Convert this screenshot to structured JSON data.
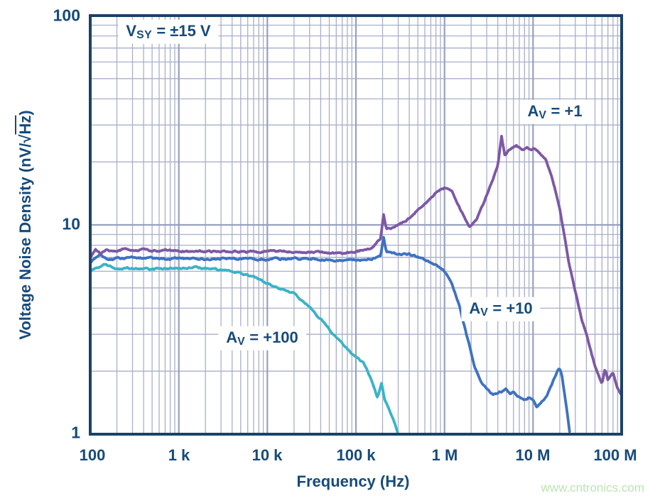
{
  "chart": {
    "annotation": {
      "prefix": "V",
      "sub": "SY",
      "suffix": " = ±15 V",
      "text": "VSY = ±15 V"
    },
    "x_axis": {
      "label": "Frequency (Hz)",
      "ticks": [
        "100",
        "1 k",
        "10 k",
        "100 k",
        "1 M",
        "10 M",
        "100 M"
      ]
    },
    "y_axis": {
      "label_pre": "Voltage Noise Density (nV/",
      "label_sqrt": "√",
      "label_radicand": "Hz",
      "label_post": ")",
      "ticks": [
        "100",
        "10",
        "1"
      ]
    },
    "watermark": "www.cntronics.com",
    "colors": {
      "text": "#164a7b",
      "border": "#1b4266",
      "grid_minor": "#a9afca",
      "grid_major": "#98a0c0",
      "purple": "#7d58a5",
      "blue": "#3e72c1",
      "cyan": "#3ab3c6",
      "watermark": "#b9e5b0"
    }
  },
  "chart_data": {
    "type": "line",
    "x_scale": "log",
    "y_scale": "log",
    "xlim": [
      100,
      100000000
    ],
    "ylim": [
      1,
      100
    ],
    "xlabel": "Frequency (Hz)",
    "ylabel": "Voltage Noise Density (nV/sqrt(Hz))",
    "annotation": "VSY = ±15 V",
    "grid": "log-log minor gridlines on",
    "legend_position": "inline labels on plot",
    "series": [
      {
        "name": "AV = +1",
        "label": {
          "prefix": "A",
          "sub": "V",
          "suffix": " = +1"
        },
        "color": "#7d58a5",
        "points": [
          [
            100,
            7.0
          ],
          [
            115,
            7.7
          ],
          [
            130,
            7.3
          ],
          [
            150,
            7.6
          ],
          [
            200,
            7.4
          ],
          [
            250,
            7.7
          ],
          [
            300,
            7.5
          ],
          [
            400,
            7.6
          ],
          [
            500,
            7.5
          ],
          [
            700,
            7.6
          ],
          [
            1000,
            7.5
          ],
          [
            1500,
            7.45
          ],
          [
            2000,
            7.5
          ],
          [
            3000,
            7.45
          ],
          [
            5000,
            7.5
          ],
          [
            7000,
            7.4
          ],
          [
            10000,
            7.45
          ],
          [
            15000,
            7.5
          ],
          [
            20000,
            7.4
          ],
          [
            30000,
            7.45
          ],
          [
            50000,
            7.35
          ],
          [
            70000,
            7.3
          ],
          [
            100000,
            7.5
          ],
          [
            130000,
            7.6
          ],
          [
            160000,
            7.9
          ],
          [
            190000,
            8.6
          ],
          [
            205000,
            11.2
          ],
          [
            220000,
            9.4
          ],
          [
            250000,
            9.6
          ],
          [
            300000,
            9.9
          ],
          [
            400000,
            10.8
          ],
          [
            500000,
            11.8
          ],
          [
            650000,
            13.0
          ],
          [
            800000,
            14.3
          ],
          [
            1000000,
            15.0
          ],
          [
            1200000,
            14.5
          ],
          [
            1500000,
            12.0
          ],
          [
            1900000,
            9.9
          ],
          [
            2300000,
            10.6
          ],
          [
            2800000,
            12.8
          ],
          [
            3500000,
            16.5
          ],
          [
            4000000,
            19.5
          ],
          [
            4400000,
            27.0
          ],
          [
            4800000,
            21.5
          ],
          [
            5500000,
            23.0
          ],
          [
            6500000,
            23.8
          ],
          [
            7500000,
            23.0
          ],
          [
            8500000,
            23.5
          ],
          [
            9500000,
            22.8
          ],
          [
            10500000,
            23.2
          ],
          [
            12000000,
            22.0
          ],
          [
            14000000,
            20.5
          ],
          [
            16000000,
            17.5
          ],
          [
            18000000,
            14.5
          ],
          [
            20000000,
            12.0
          ],
          [
            22000000,
            9.5
          ],
          [
            25000000,
            6.8
          ],
          [
            30000000,
            4.8
          ],
          [
            35000000,
            3.6
          ],
          [
            40000000,
            3.0
          ],
          [
            45000000,
            2.5
          ],
          [
            50000000,
            2.1
          ],
          [
            55000000,
            1.9
          ],
          [
            60000000,
            1.75
          ],
          [
            65000000,
            2.05
          ],
          [
            70000000,
            1.8
          ],
          [
            80000000,
            1.95
          ],
          [
            90000000,
            1.65
          ],
          [
            100000000,
            1.55
          ]
        ]
      },
      {
        "name": "AV = +10",
        "label": {
          "prefix": "A",
          "sub": "V",
          "suffix": " = +10"
        },
        "color": "#3e72c1",
        "points": [
          [
            100,
            6.6
          ],
          [
            130,
            7.2
          ],
          [
            160,
            6.8
          ],
          [
            200,
            6.9
          ],
          [
            300,
            7.0
          ],
          [
            500,
            6.9
          ],
          [
            700,
            6.85
          ],
          [
            1000,
            6.9
          ],
          [
            2000,
            6.85
          ],
          [
            3000,
            6.9
          ],
          [
            5000,
            6.85
          ],
          [
            7000,
            6.9
          ],
          [
            10000,
            6.85
          ],
          [
            15000,
            6.9
          ],
          [
            20000,
            6.85
          ],
          [
            30000,
            6.9
          ],
          [
            50000,
            6.8
          ],
          [
            70000,
            6.75
          ],
          [
            100000,
            6.8
          ],
          [
            150000,
            6.9
          ],
          [
            190000,
            7.2
          ],
          [
            205000,
            8.8
          ],
          [
            220000,
            7.4
          ],
          [
            300000,
            7.2
          ],
          [
            400000,
            7.25
          ],
          [
            500000,
            7.0
          ],
          [
            650000,
            6.7
          ],
          [
            800000,
            6.4
          ],
          [
            1000000,
            6.0
          ],
          [
            1200000,
            5.3
          ],
          [
            1500000,
            4.0
          ],
          [
            1800000,
            2.9
          ],
          [
            2200000,
            2.1
          ],
          [
            2600000,
            1.8
          ],
          [
            3000000,
            1.65
          ],
          [
            3500000,
            1.55
          ],
          [
            4000000,
            1.55
          ],
          [
            4500000,
            1.6
          ],
          [
            5000000,
            1.65
          ],
          [
            5500000,
            1.55
          ],
          [
            6000000,
            1.6
          ],
          [
            7000000,
            1.5
          ],
          [
            8000000,
            1.45
          ],
          [
            9000000,
            1.5
          ],
          [
            10000000,
            1.45
          ],
          [
            11000000,
            1.35
          ],
          [
            12000000,
            1.4
          ],
          [
            13000000,
            1.45
          ],
          [
            14000000,
            1.5
          ],
          [
            15000000,
            1.6
          ],
          [
            17000000,
            1.8
          ],
          [
            19000000,
            2.0
          ],
          [
            20000000,
            2.05
          ],
          [
            21000000,
            1.95
          ],
          [
            23000000,
            1.5
          ],
          [
            25000000,
            1.15
          ],
          [
            26500000,
            0.95
          ]
        ]
      },
      {
        "name": "AV = +100",
        "label": {
          "prefix": "A",
          "sub": "V",
          "suffix": " = +100"
        },
        "color": "#3ab3c6",
        "points": [
          [
            100,
            6.0
          ],
          [
            140,
            6.5
          ],
          [
            200,
            6.1
          ],
          [
            300,
            6.2
          ],
          [
            500,
            6.15
          ],
          [
            1000,
            6.2
          ],
          [
            1500,
            6.25
          ],
          [
            2000,
            6.2
          ],
          [
            3000,
            6.1
          ],
          [
            4000,
            6.0
          ],
          [
            5000,
            5.9
          ],
          [
            6000,
            5.75
          ],
          [
            8000,
            5.5
          ],
          [
            10000,
            5.25
          ],
          [
            13000,
            5.0
          ],
          [
            16000,
            4.85
          ],
          [
            20000,
            4.7
          ],
          [
            27000,
            4.2
          ],
          [
            34000,
            3.8
          ],
          [
            44000,
            3.4
          ],
          [
            56000,
            3.0
          ],
          [
            71000,
            2.7
          ],
          [
            92000,
            2.4
          ],
          [
            120000,
            2.2
          ],
          [
            150000,
            1.8
          ],
          [
            175000,
            1.5
          ],
          [
            195000,
            1.75
          ],
          [
            210000,
            1.45
          ],
          [
            240000,
            1.3
          ],
          [
            270000,
            1.15
          ],
          [
            300000,
            1.0
          ],
          [
            310000,
            0.92
          ]
        ]
      }
    ]
  }
}
